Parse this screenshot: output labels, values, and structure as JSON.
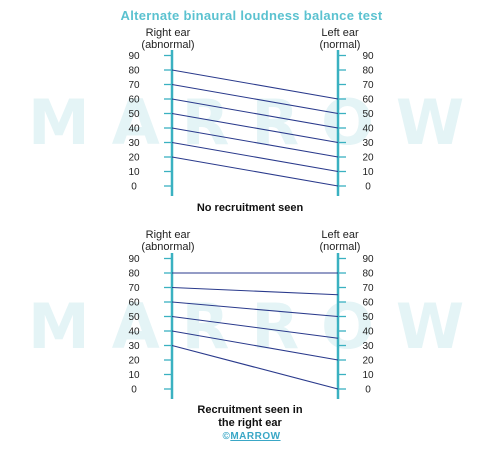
{
  "title": "Alternate binaural loudness balance test",
  "watermark": "MARROW",
  "logo": {
    "symbol": "©",
    "text": "MARROW"
  },
  "colors": {
    "title": "#5bc2d0",
    "axis": "#3ab1c1",
    "line": "#2a3a8c",
    "watermark": "#e4f4f6",
    "logo": "#3aa7c6"
  },
  "panels": [
    {
      "id": "top",
      "right_label": [
        "Right ear",
        "(abnormal)"
      ],
      "left_label": [
        "Left ear",
        "(normal)"
      ],
      "ticks": [
        0,
        10,
        20,
        30,
        40,
        50,
        60,
        70,
        80,
        90
      ],
      "caption": [
        "No recruitment seen"
      ],
      "connections": [
        {
          "right": 80,
          "left": 60
        },
        {
          "right": 70,
          "left": 50
        },
        {
          "right": 60,
          "left": 40
        },
        {
          "right": 50,
          "left": 30
        },
        {
          "right": 40,
          "left": 20
        },
        {
          "right": 30,
          "left": 10
        },
        {
          "right": 20,
          "left": 0
        }
      ]
    },
    {
      "id": "bottom",
      "right_label": [
        "Right ear",
        "(abnormal)"
      ],
      "left_label": [
        "Left ear",
        "(normal)"
      ],
      "ticks": [
        0,
        10,
        20,
        30,
        40,
        50,
        60,
        70,
        80,
        90
      ],
      "caption": [
        "Recruitment seen in",
        "the right ear"
      ],
      "connections": [
        {
          "right": 80,
          "left": 80
        },
        {
          "right": 70,
          "left": 65
        },
        {
          "right": 60,
          "left": 50
        },
        {
          "right": 50,
          "left": 35
        },
        {
          "right": 40,
          "left": 20
        },
        {
          "right": 30,
          "left": 0
        }
      ]
    }
  ]
}
